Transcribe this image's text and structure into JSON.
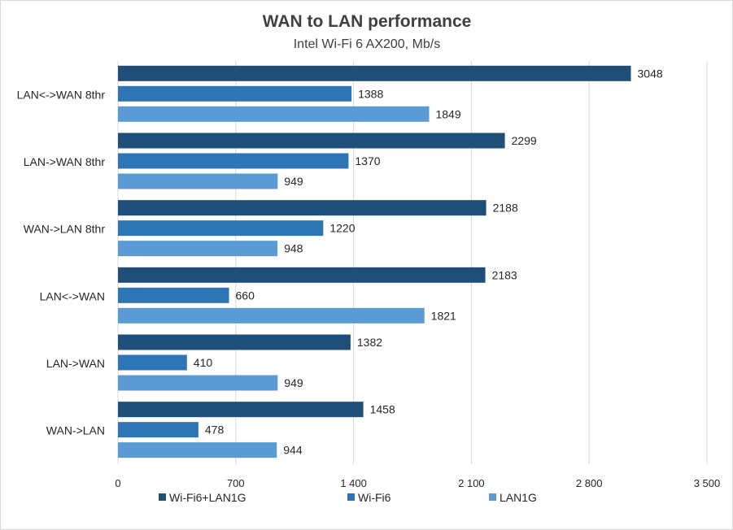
{
  "chart_data": {
    "type": "bar",
    "orientation": "horizontal",
    "title": "WAN to LAN performance",
    "subtitle": "Intel Wi-Fi 6 AX200, Mb/s",
    "xlabel": "",
    "ylabel": "",
    "categories": [
      "LAN<->WAN 8thr",
      "LAN->WAN 8thr",
      "WAN->LAN 8thr",
      "LAN<->WAN",
      "LAN->WAN",
      "WAN->LAN"
    ],
    "series": [
      {
        "name": "Wi-Fi6+LAN1G",
        "color": "#1f4e79",
        "values": [
          3048,
          2299,
          2188,
          2183,
          1382,
          1458
        ]
      },
      {
        "name": "Wi-Fi6",
        "color": "#2e75b6",
        "values": [
          1388,
          1370,
          1220,
          660,
          410,
          478
        ]
      },
      {
        "name": "LAN1G",
        "color": "#5b9bd5",
        "values": [
          1849,
          949,
          948,
          1821,
          949,
          944
        ]
      }
    ],
    "xlim": [
      0,
      3500
    ],
    "ticks": [
      {
        "value": 0,
        "label": "0"
      },
      {
        "value": 700,
        "label": "700"
      },
      {
        "value": 1400,
        "label": "1 400"
      },
      {
        "value": 2100,
        "label": "2 100"
      },
      {
        "value": 2800,
        "label": "2 800"
      },
      {
        "value": 3500,
        "label": "3 500"
      }
    ],
    "grid": true,
    "legend_position": "bottom"
  }
}
